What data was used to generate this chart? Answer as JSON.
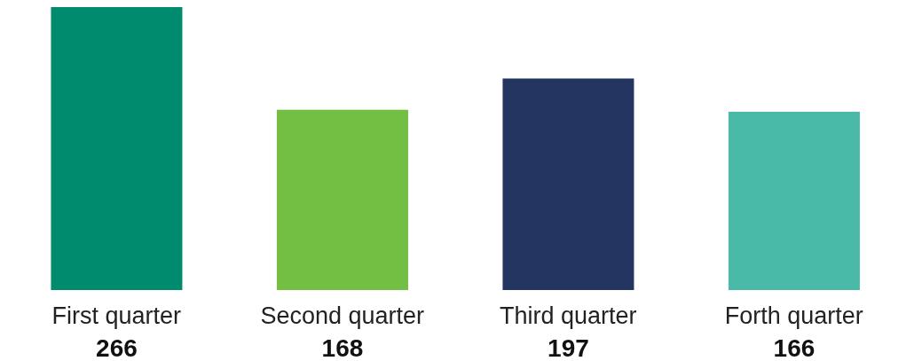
{
  "chart_data": {
    "type": "bar",
    "categories": [
      "First quarter",
      "Second quarter",
      "Third quarter",
      "Forth quarter"
    ],
    "values": [
      266,
      168,
      197,
      166
    ],
    "colors": [
      "#008a6e",
      "#72bf44",
      "#243561",
      "#49baa8"
    ],
    "data_labels": true,
    "grid": false,
    "legend": false
  }
}
